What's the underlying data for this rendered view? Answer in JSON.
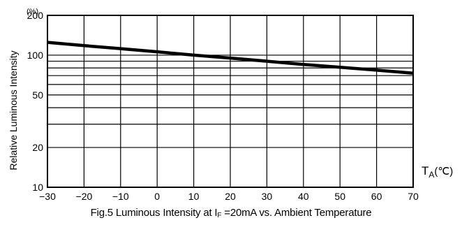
{
  "chart_data": {
    "type": "line",
    "title": "Fig.5 Luminous Intensity at I",
    "title_sub": "F",
    "title_rest": "=20mA vs. Ambient Temperature",
    "ylabel": "Relative Luminous Intensity",
    "yunit": "(%)",
    "xlabel_main": "T",
    "xlabel_sub": "A",
    "xlabel_unit": "(℃)",
    "yscale": "log",
    "xlim": [
      -30,
      70
    ],
    "ylim": [
      10,
      200
    ],
    "grid": true,
    "x_ticks": [
      -30,
      -20,
      -10,
      0,
      10,
      20,
      30,
      40,
      50,
      60,
      70
    ],
    "x_tick_labels": [
      "−30",
      "−20",
      "−10",
      "0",
      "10",
      "20",
      "30",
      "40",
      "50",
      "60",
      "70"
    ],
    "y_ticks": [
      10,
      20,
      50,
      100,
      200
    ],
    "y_tick_labels": [
      "10",
      "20",
      "50",
      "100",
      "200"
    ],
    "y_gridlines": [
      10,
      20,
      30,
      40,
      50,
      60,
      70,
      80,
      90,
      100,
      200
    ],
    "series": [
      {
        "x": [
          -30,
          -20,
          -10,
          0,
          10,
          20,
          30,
          40,
          50,
          60,
          70
        ],
        "y": [
          125,
          118,
          112,
          106,
          100,
          95,
          90,
          85,
          81,
          77,
          73
        ]
      }
    ]
  }
}
